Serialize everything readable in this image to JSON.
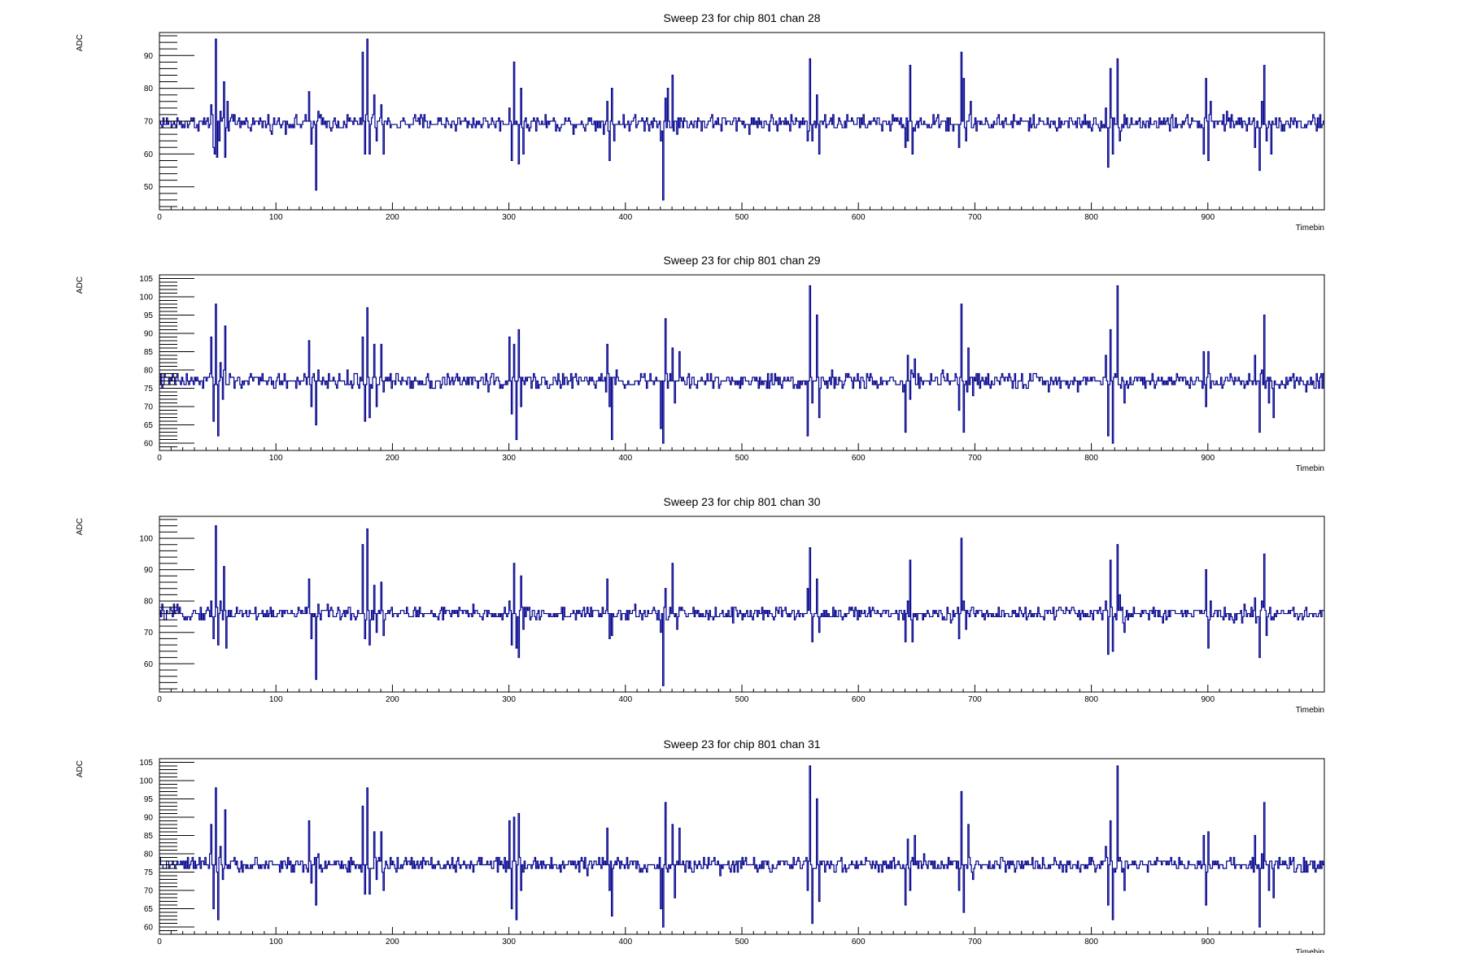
{
  "colors": {
    "trace": "#00008b",
    "axis": "#000000",
    "background": "#ffffff"
  },
  "chart_data": [
    {
      "type": "line",
      "title": "Sweep 23 for chip 801 chan 28",
      "ylabel": "ADC",
      "xlabel": "Timebin",
      "xlim": [
        0,
        1000
      ],
      "ylim": [
        43,
        97
      ],
      "xticks": [
        0,
        100,
        200,
        300,
        400,
        500,
        600,
        700,
        800,
        900
      ],
      "yticks": [
        50,
        60,
        70,
        80,
        90
      ],
      "baseline": 69.5,
      "noise": 1.2,
      "bursts": [
        [
          44,
          75,
          10
        ],
        [
          46,
          62,
          40
        ],
        [
          47,
          60,
          60
        ],
        [
          48,
          95,
          80
        ],
        [
          49,
          59,
          60
        ],
        [
          51,
          64,
          60
        ],
        [
          52,
          73,
          20
        ],
        [
          55,
          82,
          40
        ],
        [
          56,
          59,
          50
        ],
        [
          58,
          76,
          50
        ],
        [
          128,
          79,
          20
        ],
        [
          130,
          63,
          30
        ],
        [
          134,
          49,
          100
        ],
        [
          136,
          73,
          20
        ],
        [
          174,
          91,
          30
        ],
        [
          176,
          60,
          40
        ],
        [
          178,
          95,
          30
        ],
        [
          180,
          60,
          40
        ],
        [
          184,
          78,
          30
        ],
        [
          186,
          64,
          30
        ],
        [
          190,
          75,
          20
        ],
        [
          192,
          60,
          20
        ],
        [
          300,
          74,
          20
        ],
        [
          302,
          58,
          30
        ],
        [
          304,
          88,
          40
        ],
        [
          306,
          70,
          10
        ],
        [
          308,
          57,
          40
        ],
        [
          310,
          80,
          20
        ],
        [
          312,
          60,
          20
        ],
        [
          384,
          76,
          20
        ],
        [
          386,
          58,
          30
        ],
        [
          388,
          80,
          20
        ],
        [
          390,
          64,
          30
        ],
        [
          430,
          64,
          30
        ],
        [
          432,
          46,
          100
        ],
        [
          434,
          77,
          20
        ],
        [
          436,
          80,
          30
        ],
        [
          440,
          84,
          30
        ],
        [
          444,
          66,
          20
        ],
        [
          556,
          64,
          30
        ],
        [
          558,
          89,
          40
        ],
        [
          560,
          64,
          40
        ],
        [
          564,
          78,
          20
        ],
        [
          566,
          60,
          30
        ],
        [
          640,
          62,
          30
        ],
        [
          642,
          64,
          20
        ],
        [
          644,
          87,
          40
        ],
        [
          646,
          60,
          30
        ],
        [
          686,
          62,
          30
        ],
        [
          688,
          91,
          40
        ],
        [
          690,
          83,
          30
        ],
        [
          692,
          64,
          30
        ],
        [
          696,
          76,
          20
        ],
        [
          812,
          74,
          20
        ],
        [
          814,
          56,
          30
        ],
        [
          816,
          86,
          30
        ],
        [
          818,
          60,
          30
        ],
        [
          822,
          89,
          40
        ],
        [
          824,
          64,
          30
        ],
        [
          828,
          72,
          20
        ],
        [
          896,
          60,
          30
        ],
        [
          898,
          83,
          40
        ],
        [
          900,
          58,
          30
        ],
        [
          902,
          76,
          20
        ],
        [
          940,
          62,
          30
        ],
        [
          944,
          55,
          40
        ],
        [
          946,
          76,
          20
        ],
        [
          948,
          87,
          40
        ],
        [
          950,
          64,
          30
        ],
        [
          954,
          60,
          20
        ]
      ]
    },
    {
      "type": "line",
      "title": "Sweep 23 for chip 801 chan 29",
      "ylabel": "ADC",
      "xlabel": "Timebin",
      "xlim": [
        0,
        1000
      ],
      "ylim": [
        58,
        106
      ],
      "xticks": [
        0,
        100,
        200,
        300,
        400,
        500,
        600,
        700,
        800,
        900
      ],
      "yticks": [
        60,
        65,
        70,
        75,
        80,
        85,
        90,
        95,
        100,
        105
      ],
      "baseline": 77,
      "noise": 1.1,
      "bursts": [
        [
          44,
          89,
          30
        ],
        [
          46,
          66,
          30
        ],
        [
          48,
          98,
          40
        ],
        [
          50,
          62,
          40
        ],
        [
          52,
          82,
          20
        ],
        [
          54,
          72,
          20
        ],
        [
          56,
          92,
          40
        ],
        [
          58,
          76,
          20
        ],
        [
          128,
          88,
          30
        ],
        [
          130,
          70,
          20
        ],
        [
          134,
          65,
          30
        ],
        [
          136,
          80,
          20
        ],
        [
          174,
          89,
          30
        ],
        [
          176,
          66,
          30
        ],
        [
          178,
          97,
          40
        ],
        [
          180,
          67,
          30
        ],
        [
          184,
          87,
          30
        ],
        [
          186,
          70,
          20
        ],
        [
          190,
          87,
          30
        ],
        [
          192,
          74,
          20
        ],
        [
          300,
          89,
          30
        ],
        [
          302,
          68,
          30
        ],
        [
          304,
          87,
          30
        ],
        [
          306,
          61,
          40
        ],
        [
          308,
          91,
          30
        ],
        [
          310,
          70,
          20
        ],
        [
          384,
          87,
          30
        ],
        [
          386,
          70,
          20
        ],
        [
          388,
          61,
          30
        ],
        [
          430,
          64,
          30
        ],
        [
          432,
          60,
          40
        ],
        [
          434,
          94,
          40
        ],
        [
          436,
          75,
          20
        ],
        [
          440,
          86,
          30
        ],
        [
          442,
          71,
          20
        ],
        [
          446,
          85,
          20
        ],
        [
          556,
          62,
          30
        ],
        [
          558,
          103,
          40
        ],
        [
          560,
          71,
          30
        ],
        [
          564,
          95,
          30
        ],
        [
          566,
          67,
          30
        ],
        [
          640,
          63,
          30
        ],
        [
          642,
          84,
          20
        ],
        [
          644,
          72,
          20
        ],
        [
          648,
          83,
          20
        ],
        [
          686,
          69,
          30
        ],
        [
          688,
          98,
          40
        ],
        [
          690,
          63,
          30
        ],
        [
          694,
          86,
          20
        ],
        [
          698,
          73,
          20
        ],
        [
          812,
          84,
          30
        ],
        [
          814,
          62,
          40
        ],
        [
          816,
          91,
          30
        ],
        [
          818,
          60,
          30
        ],
        [
          822,
          103,
          40
        ],
        [
          824,
          76,
          20
        ],
        [
          828,
          71,
          20
        ],
        [
          896,
          85,
          20
        ],
        [
          898,
          70,
          30
        ],
        [
          900,
          85,
          20
        ],
        [
          940,
          84,
          30
        ],
        [
          944,
          63,
          40
        ],
        [
          946,
          80,
          20
        ],
        [
          948,
          95,
          40
        ],
        [
          952,
          71,
          20
        ],
        [
          956,
          67,
          20
        ]
      ]
    },
    {
      "type": "line",
      "title": "Sweep 23 for chip 801 chan 30",
      "ylabel": "ADC",
      "xlabel": "Timebin",
      "xlim": [
        0,
        1000
      ],
      "ylim": [
        51,
        107
      ],
      "xticks": [
        0,
        100,
        200,
        300,
        400,
        500,
        600,
        700,
        800,
        900
      ],
      "yticks": [
        60,
        70,
        80,
        90,
        100
      ],
      "baseline": 76,
      "noise": 1.1,
      "bursts": [
        [
          44,
          80,
          20
        ],
        [
          46,
          68,
          30
        ],
        [
          48,
          104,
          40
        ],
        [
          50,
          66,
          40
        ],
        [
          52,
          80,
          20
        ],
        [
          55,
          91,
          40
        ],
        [
          57,
          65,
          30
        ],
        [
          128,
          87,
          30
        ],
        [
          130,
          68,
          30
        ],
        [
          134,
          55,
          40
        ],
        [
          136,
          79,
          20
        ],
        [
          174,
          98,
          40
        ],
        [
          176,
          68,
          30
        ],
        [
          178,
          103,
          40
        ],
        [
          180,
          66,
          30
        ],
        [
          184,
          85,
          30
        ],
        [
          186,
          70,
          20
        ],
        [
          190,
          86,
          30
        ],
        [
          192,
          69,
          20
        ],
        [
          300,
          80,
          20
        ],
        [
          302,
          66,
          30
        ],
        [
          304,
          92,
          40
        ],
        [
          306,
          65,
          30
        ],
        [
          308,
          62,
          40
        ],
        [
          310,
          88,
          30
        ],
        [
          312,
          71,
          20
        ],
        [
          384,
          87,
          30
        ],
        [
          386,
          68,
          20
        ],
        [
          388,
          69,
          20
        ],
        [
          430,
          70,
          30
        ],
        [
          432,
          53,
          40
        ],
        [
          434,
          84,
          30
        ],
        [
          436,
          74,
          20
        ],
        [
          440,
          92,
          40
        ],
        [
          444,
          71,
          20
        ],
        [
          556,
          84,
          30
        ],
        [
          558,
          97,
          40
        ],
        [
          560,
          67,
          30
        ],
        [
          564,
          87,
          30
        ],
        [
          566,
          70,
          20
        ],
        [
          640,
          67,
          30
        ],
        [
          642,
          80,
          20
        ],
        [
          644,
          93,
          40
        ],
        [
          646,
          67,
          30
        ],
        [
          686,
          68,
          30
        ],
        [
          688,
          100,
          40
        ],
        [
          690,
          80,
          20
        ],
        [
          692,
          71,
          20
        ],
        [
          696,
          77,
          20
        ],
        [
          812,
          80,
          20
        ],
        [
          814,
          63,
          30
        ],
        [
          816,
          93,
          40
        ],
        [
          818,
          64,
          30
        ],
        [
          822,
          98,
          40
        ],
        [
          824,
          82,
          20
        ],
        [
          828,
          70,
          20
        ],
        [
          896,
          76,
          20
        ],
        [
          898,
          90,
          40
        ],
        [
          900,
          65,
          30
        ],
        [
          902,
          80,
          20
        ],
        [
          940,
          81,
          30
        ],
        [
          944,
          62,
          40
        ],
        [
          946,
          80,
          20
        ],
        [
          948,
          95,
          40
        ],
        [
          950,
          69,
          30
        ],
        [
          954,
          74,
          20
        ]
      ]
    },
    {
      "type": "line",
      "title": "Sweep 23 for chip 801 chan 31",
      "ylabel": "ADC",
      "xlabel": "Timebin",
      "xlim": [
        0,
        1000
      ],
      "ylim": [
        58,
        106
      ],
      "xticks": [
        0,
        100,
        200,
        300,
        400,
        500,
        600,
        700,
        800,
        900
      ],
      "yticks": [
        60,
        65,
        70,
        75,
        80,
        85,
        90,
        95,
        100,
        105
      ],
      "baseline": 77,
      "noise": 1.0,
      "bursts": [
        [
          44,
          88,
          30
        ],
        [
          46,
          65,
          30
        ],
        [
          48,
          98,
          40
        ],
        [
          50,
          62,
          40
        ],
        [
          52,
          82,
          20
        ],
        [
          54,
          73,
          20
        ],
        [
          56,
          92,
          40
        ],
        [
          58,
          76,
          20
        ],
        [
          128,
          89,
          30
        ],
        [
          130,
          72,
          20
        ],
        [
          134,
          66,
          30
        ],
        [
          136,
          80,
          20
        ],
        [
          174,
          93,
          30
        ],
        [
          176,
          69,
          30
        ],
        [
          178,
          98,
          40
        ],
        [
          180,
          69,
          30
        ],
        [
          184,
          86,
          30
        ],
        [
          186,
          73,
          20
        ],
        [
          190,
          86,
          30
        ],
        [
          192,
          70,
          20
        ],
        [
          300,
          89,
          30
        ],
        [
          302,
          65,
          30
        ],
        [
          304,
          90,
          30
        ],
        [
          306,
          62,
          40
        ],
        [
          308,
          91,
          30
        ],
        [
          310,
          70,
          20
        ],
        [
          384,
          87,
          30
        ],
        [
          386,
          70,
          20
        ],
        [
          388,
          63,
          30
        ],
        [
          430,
          65,
          30
        ],
        [
          432,
          60,
          40
        ],
        [
          434,
          94,
          40
        ],
        [
          436,
          75,
          20
        ],
        [
          440,
          88,
          30
        ],
        [
          442,
          68,
          20
        ],
        [
          446,
          87,
          20
        ],
        [
          556,
          70,
          30
        ],
        [
          558,
          104,
          40
        ],
        [
          560,
          61,
          30
        ],
        [
          564,
          95,
          30
        ],
        [
          566,
          67,
          30
        ],
        [
          640,
          66,
          30
        ],
        [
          642,
          84,
          20
        ],
        [
          644,
          70,
          20
        ],
        [
          648,
          85,
          20
        ],
        [
          686,
          70,
          30
        ],
        [
          688,
          97,
          40
        ],
        [
          690,
          64,
          30
        ],
        [
          694,
          88,
          20
        ],
        [
          698,
          73,
          20
        ],
        [
          812,
          82,
          30
        ],
        [
          814,
          66,
          40
        ],
        [
          816,
          89,
          30
        ],
        [
          818,
          62,
          30
        ],
        [
          822,
          104,
          40
        ],
        [
          824,
          79,
          20
        ],
        [
          828,
          70,
          20
        ],
        [
          896,
          85,
          20
        ],
        [
          898,
          66,
          30
        ],
        [
          900,
          86,
          20
        ],
        [
          940,
          85,
          30
        ],
        [
          944,
          60,
          40
        ],
        [
          946,
          80,
          20
        ],
        [
          948,
          94,
          40
        ],
        [
          952,
          70,
          20
        ],
        [
          956,
          68,
          20
        ]
      ]
    }
  ]
}
